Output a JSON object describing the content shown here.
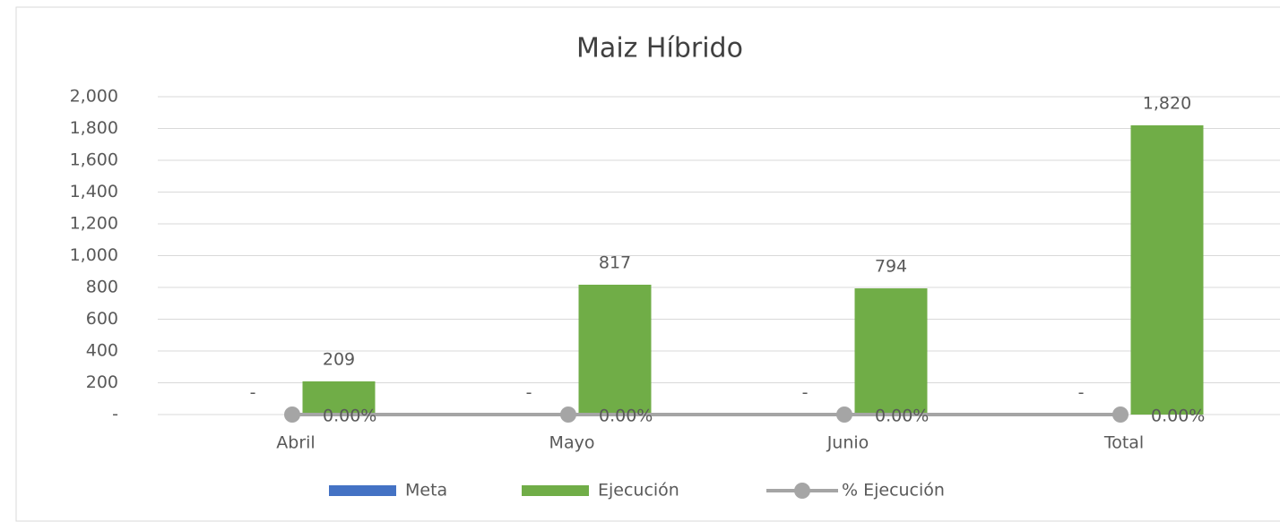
{
  "chart_data": {
    "type": "bar",
    "title": "Maiz Híbrido",
    "categories": [
      "Abril",
      "Mayo",
      "Junio",
      "Total"
    ],
    "series": [
      {
        "name": "Meta",
        "color": "#4472c4",
        "values": [
          0,
          0,
          0,
          0
        ],
        "value_labels": [
          "-",
          "-",
          "-",
          "-"
        ]
      },
      {
        "name": "Ejecución",
        "color": "#70ad47",
        "values": [
          209,
          817,
          794,
          1820
        ],
        "value_labels": [
          "209",
          "817",
          "794",
          "1,820"
        ]
      },
      {
        "name": "% Ejecución",
        "type": "line",
        "color": "#a5a5a5",
        "values": [
          0,
          0,
          0,
          0
        ],
        "value_labels": [
          "0.00%",
          "0.00%",
          "0.00%",
          "0.00%"
        ]
      }
    ],
    "ylim": [
      0,
      2000
    ],
    "yticks": [
      {
        "value": 0,
        "label": "-"
      },
      200,
      400,
      600,
      800,
      {
        "value": 1000,
        "label": "1,000"
      },
      {
        "value": 1200,
        "label": "1,200"
      },
      {
        "value": 1400,
        "label": "1,400"
      },
      {
        "value": 1600,
        "label": "1,600"
      },
      {
        "value": 1800,
        "label": "1,800"
      },
      {
        "value": 2000,
        "label": "2,000"
      }
    ],
    "grid": true,
    "legend": "bottom"
  }
}
